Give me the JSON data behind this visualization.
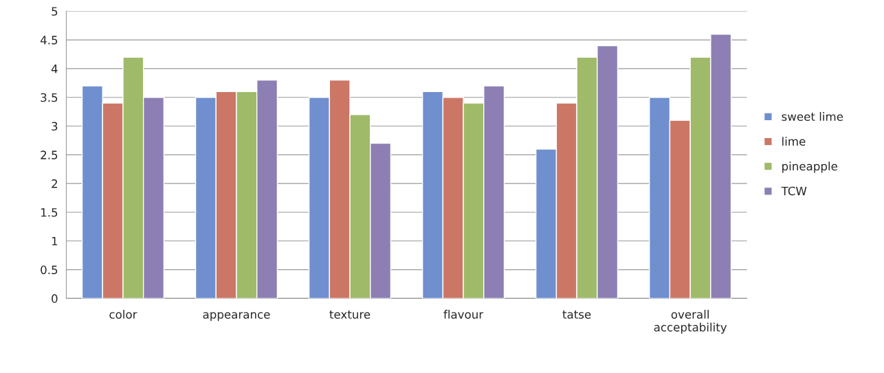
{
  "chart_data": {
    "type": "bar",
    "categories": [
      "color",
      "appearance",
      "texture",
      "flavour",
      "tatse",
      "overall\nacceptability"
    ],
    "series": [
      {
        "name": "sweet lime",
        "color": "#6f8fcf",
        "values": [
          3.7,
          3.5,
          3.5,
          3.6,
          2.6,
          3.5
        ]
      },
      {
        "name": "lime",
        "color": "#cc7766",
        "values": [
          3.4,
          3.6,
          3.8,
          3.5,
          3.4,
          3.1
        ]
      },
      {
        "name": "pineapple",
        "color": "#9fbb6a",
        "values": [
          4.2,
          3.6,
          3.2,
          3.4,
          4.2,
          4.2
        ]
      },
      {
        "name": "TCW",
        "color": "#8d7fb3",
        "values": [
          3.5,
          3.8,
          2.7,
          3.7,
          4.4,
          4.6
        ]
      }
    ],
    "ylim": [
      0,
      5
    ],
    "yticks": [
      0,
      0.5,
      1,
      1.5,
      2,
      2.5,
      3,
      3.5,
      4,
      4.5,
      5
    ],
    "grid": "y",
    "legend": "right"
  }
}
